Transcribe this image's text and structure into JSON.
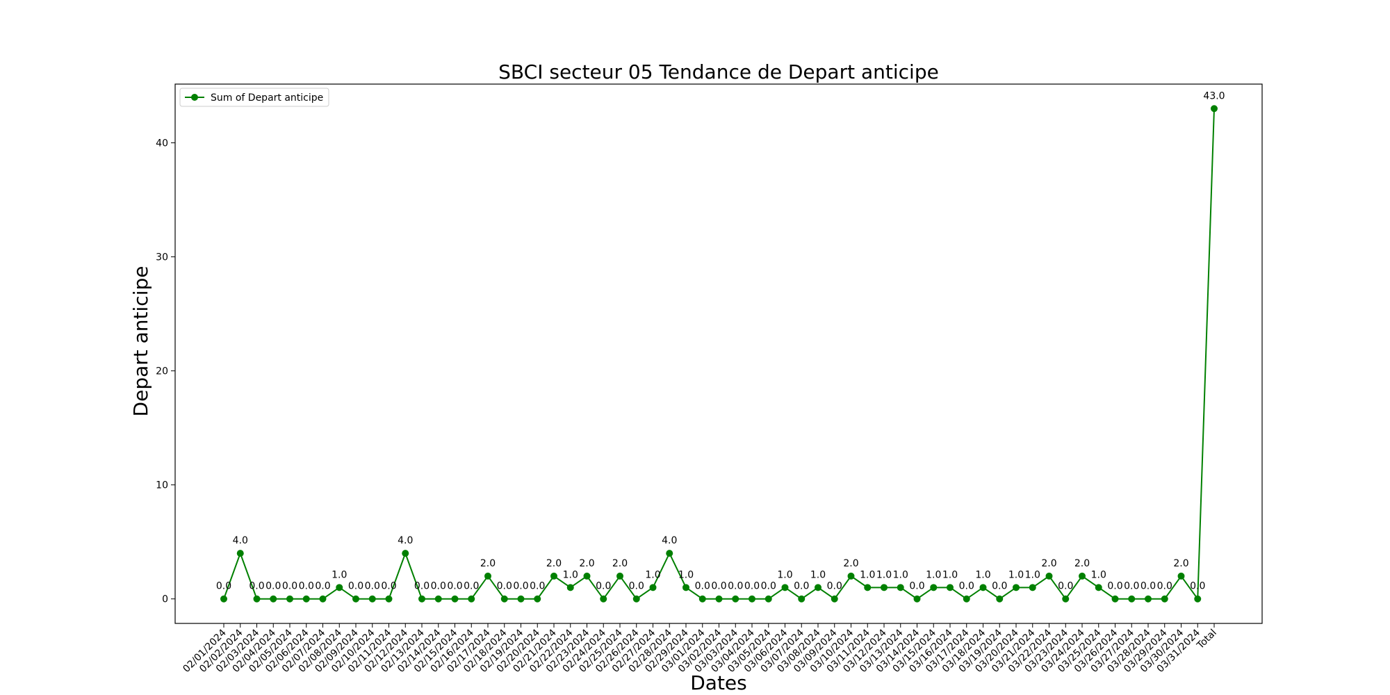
{
  "chart_data": {
    "type": "line",
    "title": "SBCI secteur 05 Tendance de Depart anticipe",
    "xlabel": "Dates",
    "ylabel": "Depart anticipe",
    "ylim": [
      -2.15,
      45.15
    ],
    "yticks": [
      0,
      10,
      20,
      30,
      40
    ],
    "grid": false,
    "legend_position": "top-left",
    "color": "#008000",
    "categories": [
      "02/01/2024",
      "02/02/2024",
      "02/03/2024",
      "02/04/2024",
      "02/05/2024",
      "02/06/2024",
      "02/07/2024",
      "02/08/2024",
      "02/09/2024",
      "02/10/2024",
      "02/11/2024",
      "02/12/2024",
      "02/13/2024",
      "02/14/2024",
      "02/15/2024",
      "02/16/2024",
      "02/17/2024",
      "02/18/2024",
      "02/19/2024",
      "02/20/2024",
      "02/21/2024",
      "02/22/2024",
      "02/23/2024",
      "02/24/2024",
      "02/25/2024",
      "02/26/2024",
      "02/27/2024",
      "02/28/2024",
      "02/29/2024",
      "03/01/2024",
      "03/02/2024",
      "03/03/2024",
      "03/04/2024",
      "03/05/2024",
      "03/06/2024",
      "03/07/2024",
      "03/08/2024",
      "03/09/2024",
      "03/10/2024",
      "03/11/2024",
      "03/12/2024",
      "03/13/2024",
      "03/14/2024",
      "03/15/2024",
      "03/16/2024",
      "03/17/2024",
      "03/18/2024",
      "03/19/2024",
      "03/20/2024",
      "03/21/2024",
      "03/22/2024",
      "03/23/2024",
      "03/24/2024",
      "03/25/2024",
      "03/26/2024",
      "03/27/2024",
      "03/28/2024",
      "03/29/2024",
      "03/30/2024",
      "03/31/2024",
      "Total"
    ],
    "series": [
      {
        "name": "Sum of Depart anticipe",
        "values": [
          0,
          4,
          0,
          0,
          0,
          0,
          0,
          1,
          0,
          0,
          0,
          4,
          0,
          0,
          0,
          0,
          2,
          0,
          0,
          0,
          2,
          1,
          2,
          0,
          2,
          0,
          1,
          4,
          1,
          0,
          0,
          0,
          0,
          0,
          1,
          0,
          1,
          0,
          2,
          1,
          1,
          1,
          0,
          1,
          1,
          0,
          1,
          0,
          1,
          1,
          2,
          0,
          2,
          1,
          0,
          0,
          0,
          0,
          2,
          0,
          43
        ]
      }
    ]
  }
}
